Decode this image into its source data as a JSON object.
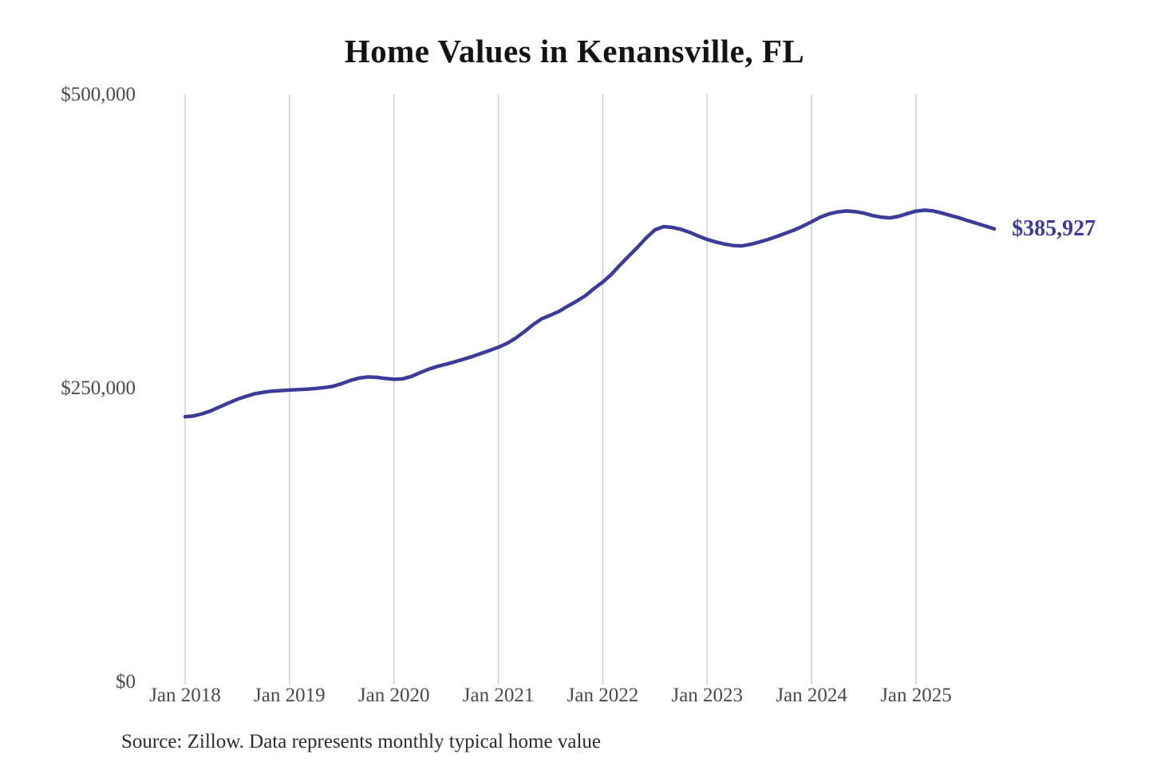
{
  "source_note": "Source: Zillow. Data represents monthly typical home value",
  "colors": {
    "line": "#3b3b99",
    "grid": "#cfcfcf",
    "axis_label": "#4a4a4a",
    "title": "#141414",
    "background": "#ffffff"
  },
  "chart_data": {
    "type": "line",
    "title": "Home Values in Kenansville, FL",
    "xlabel": "",
    "ylabel": "",
    "ylim": [
      0,
      500000
    ],
    "grid": "vertical-only",
    "legend_position": "none",
    "line_color": "#3b3b99",
    "final_value": 385927,
    "final_value_label": "$385,927",
    "y_ticks": [
      {
        "value": 0,
        "label": "$0"
      },
      {
        "value": 250000,
        "label": "$250,000"
      },
      {
        "value": 500000,
        "label": "$500,000"
      }
    ],
    "x_ticks": [
      {
        "month": "2018-01",
        "label": "Jan 2018"
      },
      {
        "month": "2019-01",
        "label": "Jan 2019"
      },
      {
        "month": "2020-01",
        "label": "Jan 2020"
      },
      {
        "month": "2021-01",
        "label": "Jan 2021"
      },
      {
        "month": "2022-01",
        "label": "Jan 2022"
      },
      {
        "month": "2023-01",
        "label": "Jan 2023"
      },
      {
        "month": "2024-01",
        "label": "Jan 2024"
      },
      {
        "month": "2025-01",
        "label": "Jan 2025"
      }
    ],
    "months": [
      "2018-01",
      "2018-02",
      "2018-03",
      "2018-04",
      "2018-05",
      "2018-06",
      "2018-07",
      "2018-08",
      "2018-09",
      "2018-10",
      "2018-11",
      "2018-12",
      "2019-01",
      "2019-02",
      "2019-03",
      "2019-04",
      "2019-05",
      "2019-06",
      "2019-07",
      "2019-08",
      "2019-09",
      "2019-10",
      "2019-11",
      "2019-12",
      "2020-01",
      "2020-02",
      "2020-03",
      "2020-04",
      "2020-05",
      "2020-06",
      "2020-07",
      "2020-08",
      "2020-09",
      "2020-10",
      "2020-11",
      "2020-12",
      "2021-01",
      "2021-02",
      "2021-03",
      "2021-04",
      "2021-05",
      "2021-06",
      "2021-07",
      "2021-08",
      "2021-09",
      "2021-10",
      "2021-11",
      "2021-12",
      "2022-01",
      "2022-02",
      "2022-03",
      "2022-04",
      "2022-05",
      "2022-06",
      "2022-07",
      "2022-08",
      "2022-09",
      "2022-10",
      "2022-11",
      "2022-12",
      "2023-01",
      "2023-02",
      "2023-03",
      "2023-04",
      "2023-05",
      "2023-06",
      "2023-07",
      "2023-08",
      "2023-09",
      "2023-10",
      "2023-11",
      "2023-12",
      "2024-01",
      "2024-02",
      "2024-03",
      "2024-04",
      "2024-05",
      "2024-06",
      "2024-07",
      "2024-08",
      "2024-09",
      "2024-10",
      "2024-11",
      "2024-12",
      "2025-01",
      "2025-02",
      "2025-03",
      "2025-04",
      "2025-05",
      "2025-06",
      "2025-07",
      "2025-08",
      "2025-09",
      "2025-10"
    ],
    "values": [
      226000,
      226800,
      228600,
      231200,
      234500,
      237800,
      240900,
      243400,
      245600,
      246900,
      247800,
      248300,
      248700,
      249100,
      249500,
      250100,
      250900,
      252000,
      254200,
      256900,
      259000,
      259900,
      259600,
      258600,
      257900,
      258300,
      260300,
      263500,
      266500,
      268900,
      270800,
      272800,
      275000,
      277300,
      279900,
      282500,
      285200,
      288500,
      293000,
      298500,
      304500,
      309500,
      312500,
      315800,
      320300,
      324400,
      329100,
      335200,
      340600,
      347300,
      355400,
      362900,
      370300,
      378400,
      385200,
      387900,
      387200,
      385500,
      383000,
      379800,
      377000,
      374800,
      373000,
      371800,
      371500,
      372800,
      374800,
      377000,
      379500,
      382300,
      385000,
      388300,
      392000,
      396000,
      398700,
      400400,
      401200,
      400700,
      399400,
      397300,
      396000,
      395300,
      396700,
      399000,
      401100,
      401900,
      401200,
      399400,
      397300,
      395300,
      392900,
      390600,
      388300,
      385927
    ]
  }
}
